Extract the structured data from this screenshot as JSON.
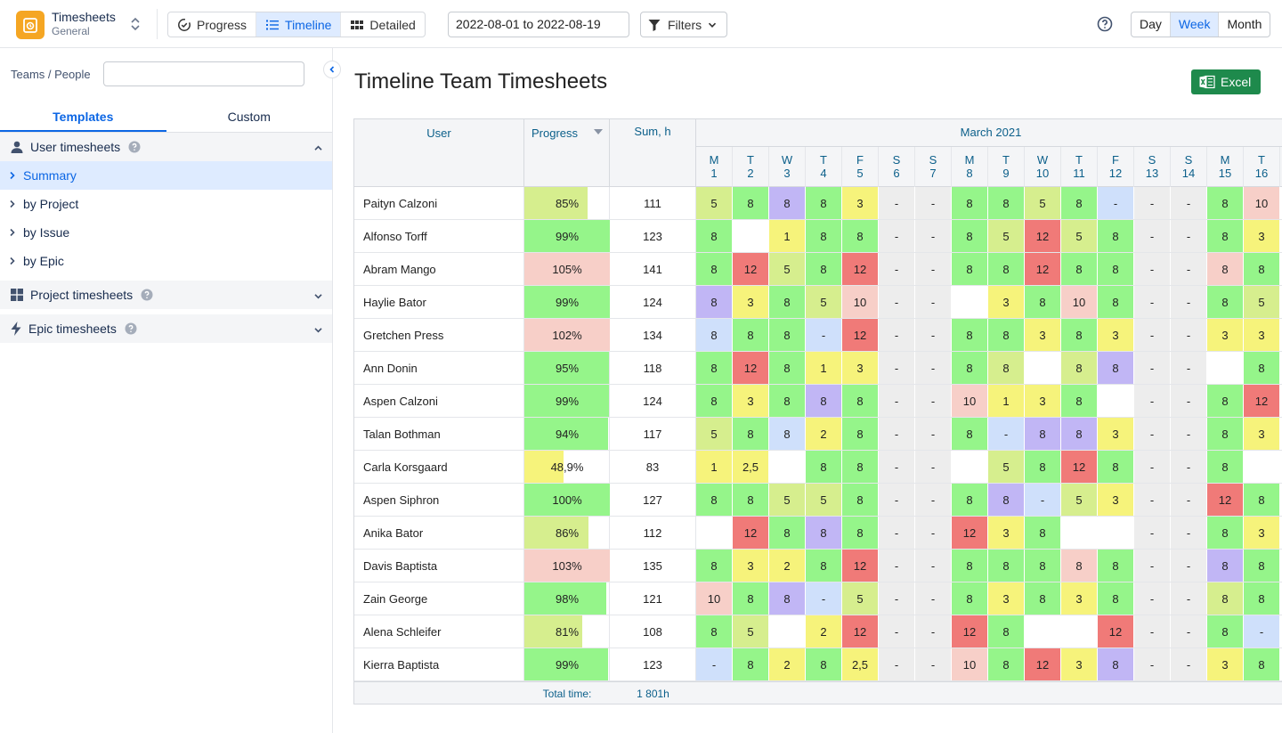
{
  "app": {
    "title": "Timesheets",
    "subtitle": "General"
  },
  "views": [
    {
      "label": "Progress",
      "icon": "progress-icon",
      "active": false
    },
    {
      "label": "Timeline",
      "icon": "list-icon",
      "active": true
    },
    {
      "label": "Detailed",
      "icon": "grid-icon",
      "active": false
    }
  ],
  "date_range": "2022-08-01 to 2022-08-19",
  "filters_label": "Filters",
  "scales": [
    {
      "label": "Day",
      "active": false
    },
    {
      "label": "Week",
      "active": true
    },
    {
      "label": "Month",
      "active": false
    }
  ],
  "sidebar": {
    "teams_label": "Teams / People",
    "teams_value": "",
    "tabs": [
      {
        "label": "Templates",
        "active": true
      },
      {
        "label": "Custom",
        "active": false
      }
    ],
    "sections": [
      {
        "label": "User timesheets",
        "icon": "user-icon",
        "expanded": true,
        "items": [
          {
            "label": "Summary",
            "active": true
          },
          {
            "label": "by Project",
            "active": false
          },
          {
            "label": "by Issue",
            "active": false
          },
          {
            "label": "by Epic",
            "active": false
          }
        ]
      },
      {
        "label": "Project timesheets",
        "icon": "grid-icon",
        "expanded": false,
        "items": []
      },
      {
        "label": "Epic timesheets",
        "icon": "bolt-icon",
        "expanded": false,
        "items": []
      }
    ]
  },
  "main": {
    "title": "Timeline Team Timesheets",
    "excel_label": "Excel"
  },
  "grid": {
    "col_user": "User",
    "col_progress": "Progress",
    "col_sum": "Sum, h",
    "month": "March 2021",
    "days": [
      {
        "dow": "M",
        "d": "1"
      },
      {
        "dow": "T",
        "d": "2"
      },
      {
        "dow": "W",
        "d": "3"
      },
      {
        "dow": "T",
        "d": "4"
      },
      {
        "dow": "F",
        "d": "5"
      },
      {
        "dow": "S",
        "d": "6"
      },
      {
        "dow": "S",
        "d": "7"
      },
      {
        "dow": "M",
        "d": "8"
      },
      {
        "dow": "T",
        "d": "9"
      },
      {
        "dow": "W",
        "d": "10"
      },
      {
        "dow": "T",
        "d": "11"
      },
      {
        "dow": "F",
        "d": "12"
      },
      {
        "dow": "S",
        "d": "13"
      },
      {
        "dow": "S",
        "d": "14"
      },
      {
        "dow": "M",
        "d": "15"
      },
      {
        "dow": "T",
        "d": "16"
      }
    ],
    "rows": [
      {
        "user": "Paityn Calzoni",
        "progress": "85%",
        "pct": 0.74,
        "sum": "111",
        "cells": [
          "5",
          "8",
          "8",
          "8",
          "3",
          "-",
          "-",
          "8",
          "8",
          "5",
          "8",
          "-",
          "-",
          "-",
          "8",
          "10"
        ]
      },
      {
        "user": "Alfonso Torff",
        "progress": "99%",
        "pct": 1.0,
        "sum": "123",
        "cells": [
          "8",
          "",
          "1",
          "8",
          "8",
          "-",
          "-",
          "8",
          "5",
          "12",
          "5",
          "8",
          "-",
          "-",
          "8",
          "3"
        ]
      },
      {
        "user": "Abram Mango",
        "progress": "105%",
        "pct": 1.0,
        "sum": "141",
        "cells": [
          "8",
          "12",
          "5",
          "8",
          "12",
          "-",
          "-",
          "8",
          "8",
          "12",
          "8",
          "8",
          "-",
          "-",
          "8",
          "8"
        ]
      },
      {
        "user": "Haylie Bator",
        "progress": "99%",
        "pct": 1.0,
        "sum": "124",
        "cells": [
          "8",
          "3",
          "8",
          "5",
          "10",
          "-",
          "-",
          "",
          "3",
          "8",
          "10",
          "8",
          "-",
          "-",
          "8",
          "5"
        ]
      },
      {
        "user": "Gretchen Press",
        "progress": "102%",
        "pct": 1.0,
        "sum": "134",
        "cells": [
          "8",
          "8",
          "8",
          "-",
          "12",
          "-",
          "-",
          "8",
          "8",
          "3",
          "8",
          "3",
          "-",
          "-",
          "3",
          "3"
        ]
      },
      {
        "user": "Ann Donin",
        "progress": "95%",
        "pct": 0.99,
        "sum": "118",
        "cells": [
          "8",
          "12",
          "8",
          "1",
          "3",
          "-",
          "-",
          "8",
          "8",
          "",
          "8",
          "8",
          "-",
          "-",
          "",
          "8"
        ]
      },
      {
        "user": "Aspen Calzoni",
        "progress": "99%",
        "pct": 0.99,
        "sum": "124",
        "cells": [
          "8",
          "3",
          "8",
          "8",
          "8",
          "-",
          "-",
          "10",
          "1",
          "3",
          "8",
          "",
          "-",
          "-",
          "8",
          "12"
        ]
      },
      {
        "user": "Talan Bothman",
        "progress": "94%",
        "pct": 0.98,
        "sum": "117",
        "cells": [
          "5",
          "8",
          "8",
          "2",
          "8",
          "-",
          "-",
          "8",
          "-",
          "8",
          "8",
          "3",
          "-",
          "-",
          "8",
          "3"
        ]
      },
      {
        "user": "Carla Korsgaard",
        "progress": "48,9%",
        "pct": 0.46,
        "sum": "83",
        "cells": [
          "1",
          "2,5",
          "",
          "8",
          "8",
          "-",
          "-",
          "",
          "5",
          "8",
          "12",
          "8",
          "-",
          "-",
          "8",
          ""
        ]
      },
      {
        "user": "Aspen Siphron",
        "progress": "100%",
        "pct": 1.0,
        "sum": "127",
        "cells": [
          "8",
          "8",
          "5",
          "5",
          "8",
          "-",
          "-",
          "8",
          "8",
          "-",
          "5",
          "3",
          "-",
          "-",
          "12",
          "8"
        ]
      },
      {
        "user": "Anika Bator",
        "progress": "86%",
        "pct": 0.75,
        "sum": "112",
        "cells": [
          "",
          "12",
          "8",
          "8",
          "8",
          "-",
          "-",
          "12",
          "3",
          "8",
          "",
          "",
          "-",
          "-",
          "8",
          "3"
        ]
      },
      {
        "user": "Davis Baptista",
        "progress": "103%",
        "pct": 1.0,
        "sum": "135",
        "cells": [
          "8",
          "3",
          "2",
          "8",
          "12",
          "-",
          "-",
          "8",
          "8",
          "8",
          "8",
          "8",
          "-",
          "-",
          "8",
          "8"
        ]
      },
      {
        "user": "Zain George",
        "progress": "98%",
        "pct": 0.96,
        "sum": "121",
        "cells": [
          "10",
          "8",
          "8",
          "-",
          "5",
          "-",
          "-",
          "8",
          "3",
          "8",
          "3",
          "8",
          "-",
          "-",
          "8",
          "8"
        ]
      },
      {
        "user": "Alena Schleifer",
        "progress": "81%",
        "pct": 0.68,
        "sum": "108",
        "cells": [
          "8",
          "5",
          "",
          "2",
          "12",
          "-",
          "-",
          "12",
          "8",
          "",
          "",
          "12",
          "-",
          "-",
          "8",
          "-"
        ]
      },
      {
        "user": "Kierra Baptista",
        "progress": "99%",
        "pct": 0.98,
        "sum": "123",
        "cells": [
          "-",
          "8",
          "2",
          "8",
          "2,5",
          "-",
          "-",
          "10",
          "8",
          "12",
          "3",
          "8",
          "-",
          "-",
          "3",
          "8"
        ]
      }
    ],
    "colors": [
      [
        "lg",
        "g",
        "p",
        "g",
        "y",
        "w",
        "w",
        "g",
        "g",
        "lg",
        "g",
        "b",
        "w",
        "w",
        "g",
        "pk"
      ],
      [
        "g",
        "n",
        "y",
        "g",
        "g",
        "w",
        "w",
        "g",
        "lg",
        "r",
        "lg",
        "g",
        "w",
        "w",
        "g",
        "y"
      ],
      [
        "g",
        "r",
        "lg",
        "g",
        "r",
        "w",
        "w",
        "g",
        "g",
        "r",
        "g",
        "g",
        "w",
        "w",
        "pk",
        "g"
      ],
      [
        "p",
        "y",
        "g",
        "lg",
        "pk",
        "w",
        "w",
        "n",
        "y",
        "g",
        "pk",
        "g",
        "w",
        "w",
        "g",
        "lg"
      ],
      [
        "b",
        "g",
        "g",
        "b",
        "r",
        "w",
        "w",
        "g",
        "g",
        "y",
        "g",
        "y",
        "w",
        "w",
        "y",
        "y"
      ],
      [
        "g",
        "r",
        "g",
        "y",
        "y",
        "w",
        "w",
        "g",
        "lg",
        "n",
        "lg",
        "p",
        "w",
        "w",
        "n",
        "g"
      ],
      [
        "g",
        "y",
        "g",
        "p",
        "g",
        "w",
        "w",
        "pk",
        "y",
        "y",
        "g",
        "n",
        "w",
        "w",
        "g",
        "r"
      ],
      [
        "lg",
        "g",
        "b",
        "y",
        "g",
        "w",
        "w",
        "g",
        "b",
        "p",
        "p",
        "y",
        "w",
        "w",
        "g",
        "y"
      ],
      [
        "y",
        "y",
        "n",
        "g",
        "g",
        "w",
        "w",
        "n",
        "lg",
        "g",
        "r",
        "g",
        "w",
        "w",
        "g",
        "n"
      ],
      [
        "g",
        "g",
        "lg",
        "lg",
        "g",
        "w",
        "w",
        "g",
        "p",
        "b",
        "lg",
        "y",
        "w",
        "w",
        "r",
        "g"
      ],
      [
        "n",
        "r",
        "g",
        "p",
        "g",
        "w",
        "w",
        "r",
        "y",
        "g",
        "n",
        "n",
        "w",
        "w",
        "g",
        "y"
      ],
      [
        "g",
        "y",
        "y",
        "g",
        "r",
        "w",
        "w",
        "g",
        "g",
        "g",
        "pk",
        "g",
        "w",
        "w",
        "p",
        "g"
      ],
      [
        "pk",
        "g",
        "p",
        "b",
        "lg",
        "w",
        "w",
        "g",
        "y",
        "g",
        "y",
        "g",
        "w",
        "w",
        "lg",
        "g"
      ],
      [
        "g",
        "lg",
        "n",
        "y",
        "r",
        "w",
        "w",
        "r",
        "g",
        "n",
        "n",
        "r",
        "w",
        "w",
        "g",
        "b"
      ],
      [
        "b",
        "g",
        "y",
        "g",
        "y",
        "w",
        "w",
        "pk",
        "g",
        "r",
        "y",
        "p",
        "w",
        "w",
        "y",
        "g"
      ]
    ],
    "progress_colors": [
      "lg",
      "g",
      "pk",
      "g",
      "pk",
      "g",
      "g",
      "g",
      "y",
      "g",
      "lg",
      "pk",
      "g",
      "lg",
      "g"
    ],
    "total_label": "Total time:",
    "total_value": "1 801h"
  },
  "palette": {
    "g": "#95f58a",
    "lg": "#d6ee8e",
    "y": "#f6f37b",
    "r": "#f07a78",
    "pk": "#f7cfc8",
    "p": "#c1b6f5",
    "b": "#cfe0fb",
    "w": "#ededed",
    "n": "#ffffff",
    "accent": "#0c66e4",
    "excel": "#1e8a4c",
    "logo": "#f5a623"
  }
}
